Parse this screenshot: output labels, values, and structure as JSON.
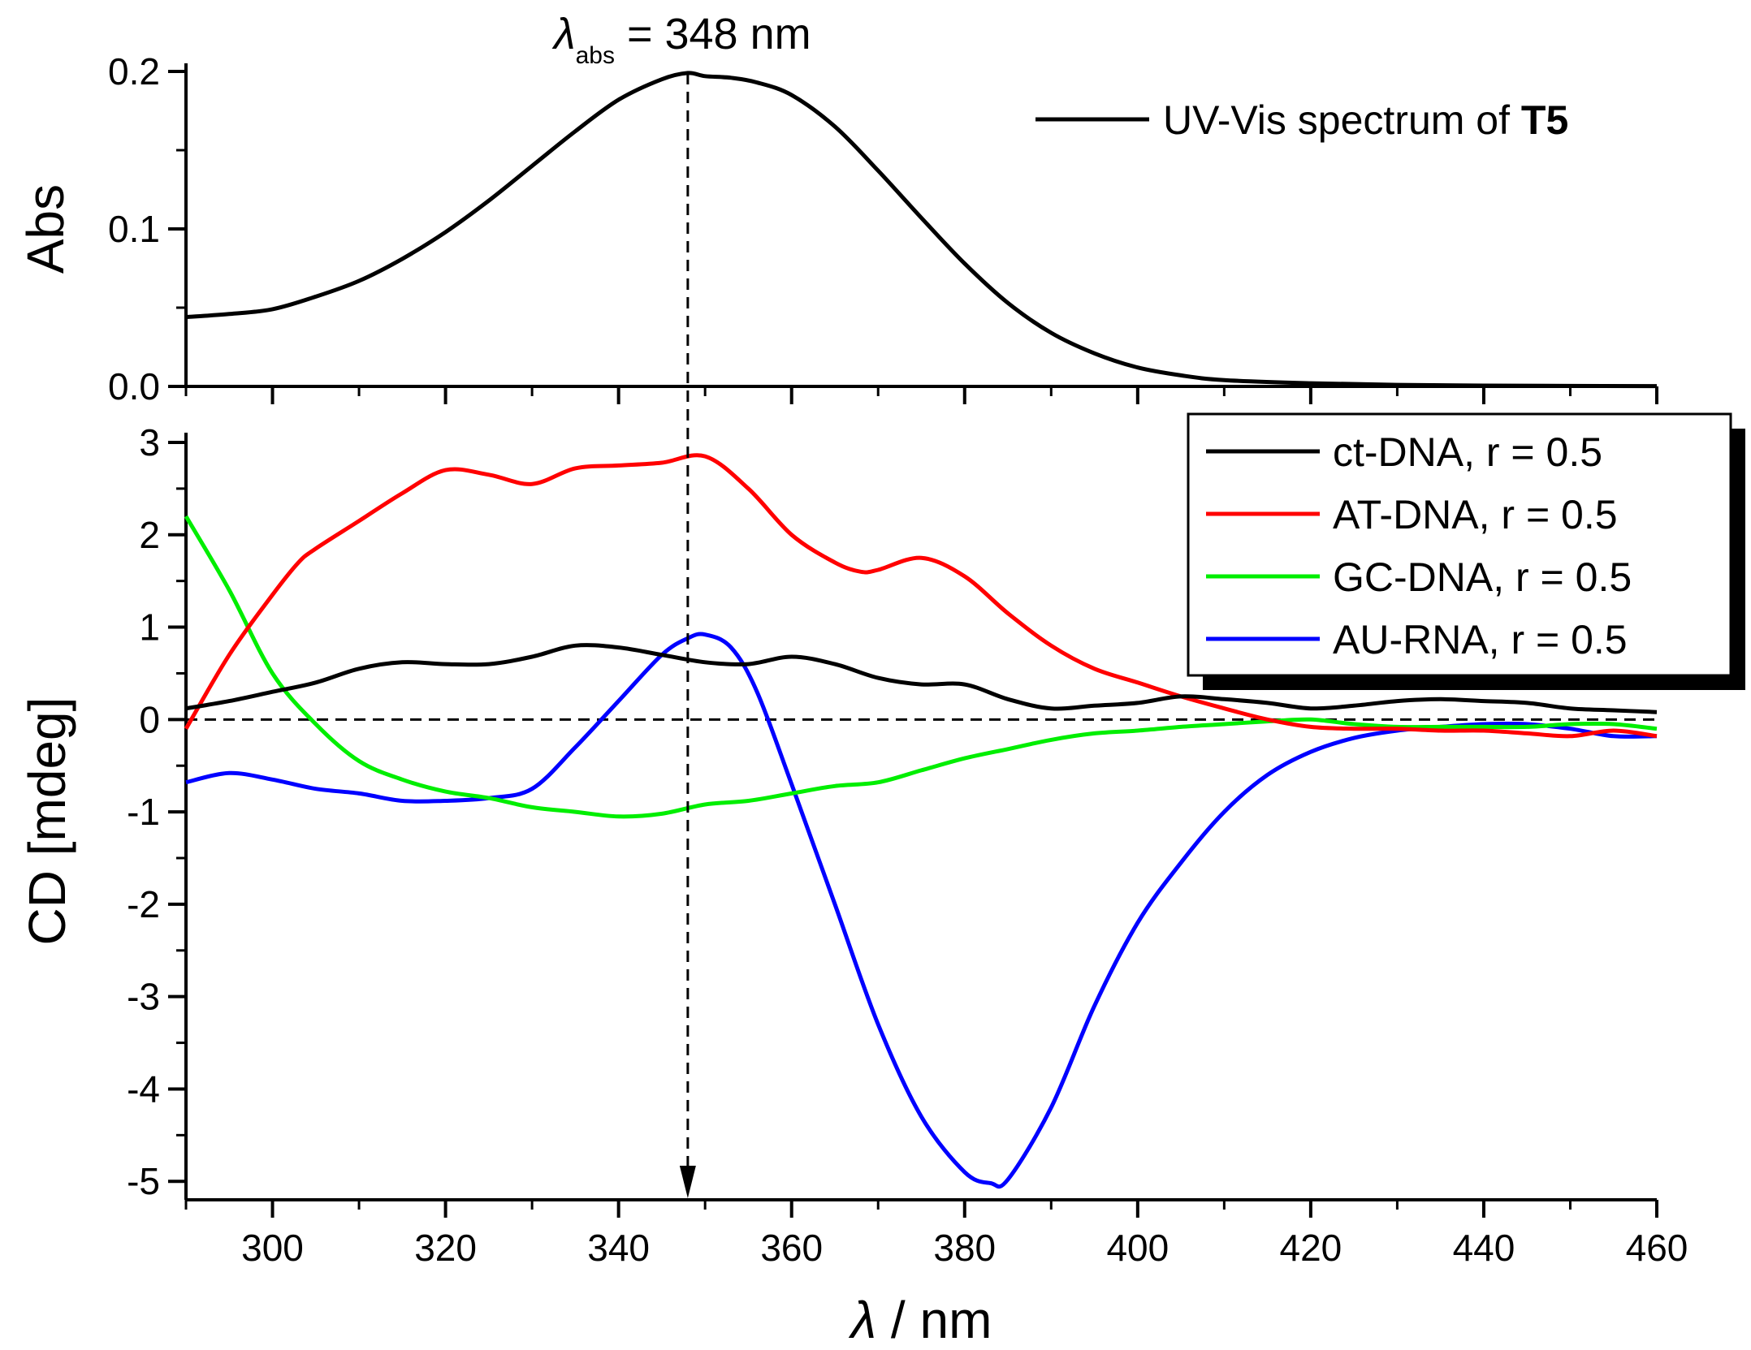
{
  "chart_data": [
    {
      "type": "line",
      "panel": "top",
      "ylabel": "Abs",
      "xlim": [
        290,
        460
      ],
      "ylim": [
        0,
        0.2
      ],
      "yticks": [
        "0.0",
        "0.1",
        "0.2"
      ],
      "annotation": {
        "symbol": "λ",
        "subscript": "abs",
        "text": " = 348 nm",
        "x": 348
      },
      "legend": "top-right",
      "series": [
        {
          "name": "UV-Vis spectrum of ",
          "name_bold": "T5",
          "color": "#000000",
          "x": [
            290,
            295,
            300,
            305,
            310,
            315,
            320,
            325,
            330,
            335,
            340,
            345,
            348,
            350,
            353,
            356,
            360,
            365,
            370,
            375,
            380,
            385,
            390,
            395,
            400,
            405,
            410,
            420,
            430,
            440,
            450,
            460
          ],
          "values": [
            0.044,
            0.046,
            0.049,
            0.057,
            0.067,
            0.081,
            0.098,
            0.118,
            0.14,
            0.162,
            0.182,
            0.195,
            0.199,
            0.197,
            0.196,
            0.193,
            0.185,
            0.165,
            0.137,
            0.107,
            0.078,
            0.053,
            0.034,
            0.021,
            0.012,
            0.007,
            0.004,
            0.002,
            0.001,
            0.0005,
            0.0003,
            0.0002
          ]
        }
      ]
    },
    {
      "type": "line",
      "panel": "bottom",
      "ylabel": "CD [mdeg]",
      "xlabel_symbol": "λ",
      "xlabel_text": " / nm",
      "xlim": [
        290,
        460
      ],
      "ylim": [
        -5.2,
        3
      ],
      "xticks": [
        300,
        320,
        340,
        360,
        380,
        400,
        420,
        440,
        460
      ],
      "yticks": [
        "3",
        "2",
        "1",
        "0",
        "-1",
        "-2",
        "-3",
        "-4",
        "-5"
      ],
      "legend": "top-right",
      "series": [
        {
          "name": "ct-DNA, r = 0.5",
          "color": "#000000",
          "x": [
            290,
            295,
            300,
            305,
            310,
            315,
            320,
            325,
            330,
            335,
            340,
            345,
            350,
            355,
            360,
            365,
            370,
            375,
            380,
            385,
            390,
            395,
            400,
            405,
            410,
            415,
            420,
            425,
            430,
            435,
            440,
            445,
            450,
            455,
            460
          ],
          "values": [
            0.12,
            0.2,
            0.3,
            0.4,
            0.55,
            0.62,
            0.6,
            0.6,
            0.68,
            0.8,
            0.78,
            0.7,
            0.62,
            0.6,
            0.68,
            0.6,
            0.45,
            0.38,
            0.38,
            0.22,
            0.12,
            0.15,
            0.18,
            0.25,
            0.22,
            0.18,
            0.12,
            0.15,
            0.2,
            0.22,
            0.2,
            0.18,
            0.12,
            0.1,
            0.08
          ]
        },
        {
          "name": "AT-DNA, r = 0.5",
          "color": "#ff0000",
          "x": [
            290,
            295,
            300,
            303,
            305,
            310,
            315,
            320,
            325,
            330,
            335,
            340,
            345,
            350,
            355,
            360,
            365,
            368,
            370,
            375,
            380,
            385,
            390,
            395,
            400,
            405,
            410,
            415,
            420,
            425,
            430,
            435,
            440,
            445,
            450,
            455,
            460
          ],
          "values": [
            -0.1,
            0.7,
            1.35,
            1.7,
            1.85,
            2.15,
            2.45,
            2.7,
            2.65,
            2.55,
            2.72,
            2.75,
            2.78,
            2.85,
            2.5,
            2.0,
            1.7,
            1.6,
            1.62,
            1.75,
            1.55,
            1.15,
            0.8,
            0.55,
            0.4,
            0.25,
            0.12,
            0.0,
            -0.08,
            -0.1,
            -0.1,
            -0.12,
            -0.12,
            -0.15,
            -0.18,
            -0.12,
            -0.18
          ]
        },
        {
          "name": "GC-DNA, r = 0.5",
          "color": "#00ee00",
          "x": [
            290,
            295,
            300,
            305,
            310,
            315,
            320,
            325,
            330,
            335,
            340,
            345,
            350,
            355,
            360,
            365,
            370,
            375,
            380,
            385,
            390,
            395,
            400,
            405,
            410,
            415,
            420,
            425,
            430,
            435,
            440,
            445,
            450,
            455,
            460
          ],
          "values": [
            2.2,
            1.4,
            0.5,
            -0.05,
            -0.45,
            -0.65,
            -0.78,
            -0.85,
            -0.95,
            -1.0,
            -1.05,
            -1.02,
            -0.92,
            -0.88,
            -0.8,
            -0.72,
            -0.68,
            -0.55,
            -0.42,
            -0.32,
            -0.22,
            -0.15,
            -0.12,
            -0.08,
            -0.05,
            -0.02,
            0.0,
            -0.05,
            -0.08,
            -0.08,
            -0.08,
            -0.08,
            -0.05,
            -0.05,
            -0.1
          ]
        },
        {
          "name": "AU-RNA, r = 0.5",
          "color": "#0000ff",
          "x": [
            290,
            295,
            300,
            305,
            310,
            315,
            320,
            325,
            330,
            335,
            340,
            345,
            348,
            350,
            353,
            356,
            360,
            365,
            370,
            375,
            380,
            383,
            385,
            390,
            395,
            400,
            405,
            410,
            415,
            420,
            425,
            430,
            435,
            440,
            445,
            450,
            455,
            460
          ],
          "values": [
            -0.68,
            -0.58,
            -0.65,
            -0.75,
            -0.8,
            -0.88,
            -0.88,
            -0.85,
            -0.75,
            -0.3,
            0.2,
            0.7,
            0.88,
            0.92,
            0.78,
            0.3,
            -0.7,
            -2.0,
            -3.3,
            -4.3,
            -4.9,
            -5.02,
            -4.98,
            -4.2,
            -3.1,
            -2.2,
            -1.55,
            -1.0,
            -0.6,
            -0.35,
            -0.2,
            -0.12,
            -0.08,
            -0.05,
            -0.05,
            -0.1,
            -0.18,
            -0.18
          ]
        }
      ]
    }
  ]
}
